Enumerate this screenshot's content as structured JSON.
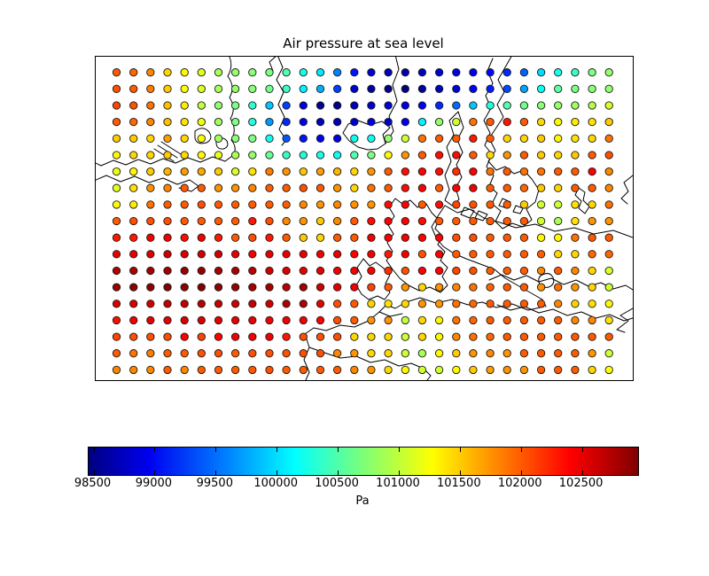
{
  "title": "Air pressure at sea level",
  "colorbar": {
    "label": "Pa",
    "tick_labels": [
      "98500",
      "99000",
      "99500",
      "100000",
      "100500",
      "101000",
      "101500",
      "102000",
      "102500"
    ]
  },
  "chart_data": {
    "type": "scatter",
    "title": "Air pressure at sea level",
    "colorbar_label": "Pa",
    "colormap": "jet",
    "vmin": 98460,
    "vmax": 102960,
    "colorbar_ticks": [
      98500,
      99000,
      99500,
      100000,
      100500,
      101000,
      101500,
      102000,
      102500
    ],
    "grid": {
      "cols": 30,
      "rows": 19
    },
    "legend": "none",
    "values": [
      [
        102000,
        101950,
        101800,
        101450,
        101300,
        101150,
        100900,
        100800,
        100750,
        100700,
        100500,
        100250,
        100050,
        99600,
        99100,
        98850,
        98700,
        98650,
        98750,
        98850,
        98900,
        98950,
        99050,
        99200,
        99450,
        100000,
        100250,
        100400,
        100700,
        100800
      ],
      [
        102050,
        102000,
        101850,
        101500,
        101250,
        101100,
        100900,
        100800,
        100750,
        100650,
        100400,
        100100,
        99800,
        99300,
        98800,
        98600,
        98500,
        98450,
        98600,
        98750,
        98850,
        99000,
        99150,
        99350,
        99750,
        100200,
        100550,
        100700,
        100750,
        100800
      ],
      [
        102100,
        102050,
        101900,
        101550,
        101350,
        101000,
        100800,
        100700,
        100350,
        99900,
        99300,
        98900,
        98550,
        98500,
        98700,
        98800,
        98850,
        98900,
        99000,
        99200,
        99500,
        99900,
        100300,
        100500,
        100650,
        100750,
        100800,
        100850,
        100950,
        101100
      ],
      [
        102000,
        101950,
        101800,
        101550,
        101400,
        101200,
        100850,
        100700,
        100300,
        99700,
        99200,
        98950,
        98750,
        98700,
        98800,
        98900,
        98800,
        98950,
        100100,
        100800,
        101050,
        101900,
        102000,
        102300,
        102000,
        101450,
        101300,
        101350,
        101400,
        101500
      ],
      [
        101500,
        101500,
        101450,
        101700,
        101450,
        101250,
        100850,
        100750,
        100700,
        100200,
        99400,
        99100,
        98950,
        98900,
        100200,
        100200,
        100800,
        101050,
        101900,
        102000,
        102000,
        102300,
        102000,
        101450,
        101450,
        101500,
        101300,
        101400,
        101450,
        101900
      ],
      [
        101300,
        101450,
        101450,
        101500,
        101450,
        101300,
        101200,
        100900,
        100800,
        100600,
        100400,
        100300,
        100250,
        100200,
        100500,
        100700,
        101300,
        101750,
        102000,
        102350,
        102350,
        102000,
        101450,
        101750,
        102000,
        101500,
        101450,
        101500,
        102000,
        102050
      ],
      [
        101200,
        101300,
        101500,
        101600,
        101700,
        101650,
        101500,
        101100,
        101400,
        101850,
        101750,
        101500,
        101700,
        101600,
        101450,
        101750,
        102000,
        102350,
        102400,
        102350,
        102200,
        102400,
        101900,
        102000,
        101900,
        101900,
        102000,
        102000,
        102400,
        101800
      ],
      [
        101150,
        101400,
        101750,
        101800,
        102000,
        102000,
        101750,
        101750,
        101800,
        102000,
        102000,
        102050,
        102000,
        101750,
        101450,
        101900,
        102000,
        102350,
        102400,
        102000,
        102400,
        102450,
        102000,
        102000,
        101950,
        101500,
        101450,
        102000,
        102000,
        101800
      ],
      [
        101250,
        101350,
        101900,
        102000,
        102000,
        102050,
        102000,
        102000,
        102000,
        102000,
        102000,
        101800,
        101750,
        101800,
        101750,
        101750,
        102350,
        102400,
        102000,
        102350,
        102100,
        102050,
        102000,
        102000,
        101500,
        101050,
        101050,
        101400,
        101450,
        101900
      ],
      [
        102000,
        102050,
        102050,
        102050,
        102000,
        102000,
        102000,
        102000,
        102300,
        102050,
        101800,
        101750,
        101500,
        101800,
        102000,
        102350,
        102400,
        102400,
        102350,
        102000,
        102000,
        102000,
        102000,
        102000,
        102000,
        101050,
        100900,
        101400,
        101750,
        101750
      ],
      [
        102300,
        102300,
        102450,
        102450,
        102350,
        102450,
        102300,
        102000,
        102050,
        102300,
        102000,
        101500,
        101450,
        102000,
        102000,
        102450,
        102400,
        102450,
        102400,
        102400,
        102050,
        102050,
        102000,
        102000,
        102000,
        101300,
        101300,
        101900,
        102000,
        102000
      ],
      [
        102500,
        102500,
        102550,
        102600,
        102550,
        102600,
        102600,
        102500,
        102450,
        102500,
        102500,
        102500,
        102450,
        102500,
        102400,
        102450,
        102300,
        102450,
        102050,
        102400,
        102000,
        102000,
        102000,
        102000,
        102000,
        102000,
        101450,
        101450,
        101950,
        101950
      ],
      [
        102750,
        102750,
        102800,
        102800,
        102850,
        102850,
        102800,
        102750,
        102700,
        102600,
        102550,
        102500,
        102500,
        102450,
        102450,
        102400,
        102200,
        102050,
        102400,
        102400,
        102100,
        102050,
        102000,
        102000,
        102000,
        101800,
        102000,
        101800,
        101450,
        101100
      ],
      [
        102850,
        102900,
        102900,
        102950,
        102900,
        102950,
        102900,
        102850,
        102800,
        102800,
        102700,
        102800,
        102600,
        102500,
        102450,
        102100,
        102000,
        101750,
        101450,
        101750,
        101800,
        101900,
        101950,
        102000,
        102000,
        101750,
        101900,
        101750,
        101450,
        101050
      ],
      [
        102550,
        102550,
        102600,
        102650,
        102650,
        102700,
        102650,
        102600,
        102650,
        102600,
        102750,
        102750,
        102500,
        102050,
        102000,
        101450,
        101400,
        101450,
        101750,
        101750,
        101900,
        101950,
        102000,
        102000,
        102000,
        102000,
        101800,
        101450,
        101400,
        101300
      ],
      [
        102350,
        102450,
        102500,
        102500,
        102550,
        102550,
        102500,
        102500,
        102500,
        102450,
        102450,
        102450,
        102400,
        102050,
        102000,
        101750,
        101750,
        101000,
        101450,
        101300,
        101900,
        101950,
        102000,
        102000,
        102000,
        102000,
        102000,
        101800,
        101800,
        101400
      ],
      [
        102100,
        102050,
        102050,
        102050,
        102400,
        102100,
        102400,
        102450,
        102450,
        102450,
        102300,
        102050,
        102050,
        102050,
        101450,
        101450,
        101450,
        101050,
        101450,
        101300,
        101800,
        101900,
        101950,
        102000,
        102000,
        102000,
        102000,
        102000,
        102000,
        102000
      ],
      [
        102000,
        101900,
        101850,
        102000,
        102000,
        102050,
        102050,
        102000,
        102050,
        102050,
        102050,
        102050,
        102050,
        101800,
        101750,
        101450,
        101450,
        101050,
        100900,
        101300,
        101500,
        101750,
        101800,
        101750,
        102000,
        102000,
        102000,
        102000,
        101750,
        101050
      ],
      [
        101800,
        101800,
        101800,
        102000,
        101800,
        102000,
        102000,
        102000,
        102000,
        102050,
        102000,
        102000,
        102000,
        102000,
        101800,
        101750,
        101450,
        101300,
        101050,
        101050,
        101300,
        101500,
        101700,
        101750,
        101750,
        102000,
        102000,
        102000,
        101450,
        101250
      ]
    ]
  }
}
